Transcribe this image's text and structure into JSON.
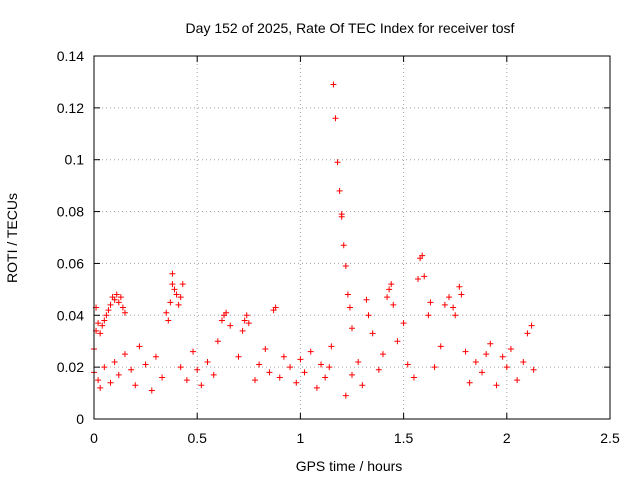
{
  "chart_data": {
    "type": "scatter",
    "title": "Day 152 of 2025, Rate Of TEC Index for receiver tosf",
    "xlabel": "GPS time / hours",
    "ylabel": "ROTI / TECUs",
    "xlim": [
      0,
      2.5
    ],
    "ylim": [
      0,
      0.14
    ],
    "x_ticks": [
      0,
      0.5,
      1,
      1.5,
      2,
      2.5
    ],
    "x_tick_labels": [
      "0",
      "0.5",
      "1",
      "1.5",
      "2",
      "2.5"
    ],
    "y_ticks": [
      0,
      0.02,
      0.04,
      0.06,
      0.08,
      0.1,
      0.12,
      0.14
    ],
    "y_tick_labels": [
      "0",
      "0.02",
      "0.04",
      "0.06",
      "0.08",
      "0.1",
      "0.12",
      "0.14"
    ],
    "grid": true,
    "marker": "plus",
    "series": [
      {
        "name": "ROTI",
        "color": "#ff0000",
        "points": [
          [
            0.0,
            0.018
          ],
          [
            0.0,
            0.027
          ],
          [
            0.01,
            0.043
          ],
          [
            0.01,
            0.034
          ],
          [
            0.02,
            0.037
          ],
          [
            0.02,
            0.015
          ],
          [
            0.03,
            0.033
          ],
          [
            0.04,
            0.036
          ],
          [
            0.05,
            0.038
          ],
          [
            0.06,
            0.04
          ],
          [
            0.07,
            0.042
          ],
          [
            0.08,
            0.044
          ],
          [
            0.09,
            0.047
          ],
          [
            0.1,
            0.046
          ],
          [
            0.11,
            0.048
          ],
          [
            0.12,
            0.045
          ],
          [
            0.13,
            0.047
          ],
          [
            0.14,
            0.043
          ],
          [
            0.15,
            0.041
          ],
          [
            0.03,
            0.012
          ],
          [
            0.05,
            0.02
          ],
          [
            0.08,
            0.014
          ],
          [
            0.1,
            0.022
          ],
          [
            0.12,
            0.017
          ],
          [
            0.15,
            0.025
          ],
          [
            0.18,
            0.019
          ],
          [
            0.2,
            0.013
          ],
          [
            0.22,
            0.028
          ],
          [
            0.25,
            0.021
          ],
          [
            0.28,
            0.011
          ],
          [
            0.3,
            0.024
          ],
          [
            0.33,
            0.016
          ],
          [
            0.35,
            0.041
          ],
          [
            0.36,
            0.038
          ],
          [
            0.37,
            0.045
          ],
          [
            0.38,
            0.052
          ],
          [
            0.38,
            0.056
          ],
          [
            0.39,
            0.05
          ],
          [
            0.4,
            0.048
          ],
          [
            0.41,
            0.044
          ],
          [
            0.42,
            0.047
          ],
          [
            0.43,
            0.052
          ],
          [
            0.42,
            0.02
          ],
          [
            0.45,
            0.015
          ],
          [
            0.48,
            0.026
          ],
          [
            0.5,
            0.019
          ],
          [
            0.52,
            0.013
          ],
          [
            0.55,
            0.022
          ],
          [
            0.58,
            0.017
          ],
          [
            0.6,
            0.03
          ],
          [
            0.62,
            0.038
          ],
          [
            0.63,
            0.04
          ],
          [
            0.64,
            0.041
          ],
          [
            0.66,
            0.036
          ],
          [
            0.7,
            0.024
          ],
          [
            0.72,
            0.034
          ],
          [
            0.73,
            0.038
          ],
          [
            0.74,
            0.04
          ],
          [
            0.75,
            0.037
          ],
          [
            0.78,
            0.015
          ],
          [
            0.8,
            0.021
          ],
          [
            0.83,
            0.027
          ],
          [
            0.85,
            0.018
          ],
          [
            0.87,
            0.042
          ],
          [
            0.88,
            0.043
          ],
          [
            0.9,
            0.016
          ],
          [
            0.92,
            0.024
          ],
          [
            0.95,
            0.02
          ],
          [
            0.98,
            0.014
          ],
          [
            1.0,
            0.023
          ],
          [
            1.02,
            0.018
          ],
          [
            1.05,
            0.026
          ],
          [
            1.08,
            0.012
          ],
          [
            1.1,
            0.021
          ],
          [
            1.12,
            0.016
          ],
          [
            1.14,
            0.02
          ],
          [
            1.15,
            0.028
          ],
          [
            1.16,
            0.129
          ],
          [
            1.17,
            0.116
          ],
          [
            1.18,
            0.099
          ],
          [
            1.19,
            0.088
          ],
          [
            1.2,
            0.079
          ],
          [
            1.2,
            0.078
          ],
          [
            1.21,
            0.067
          ],
          [
            1.22,
            0.059
          ],
          [
            1.23,
            0.048
          ],
          [
            1.24,
            0.043
          ],
          [
            1.25,
            0.035
          ],
          [
            1.22,
            0.009
          ],
          [
            1.25,
            0.017
          ],
          [
            1.28,
            0.022
          ],
          [
            1.3,
            0.013
          ],
          [
            1.32,
            0.046
          ],
          [
            1.33,
            0.04
          ],
          [
            1.35,
            0.033
          ],
          [
            1.38,
            0.019
          ],
          [
            1.4,
            0.025
          ],
          [
            1.42,
            0.047
          ],
          [
            1.43,
            0.05
          ],
          [
            1.44,
            0.052
          ],
          [
            1.45,
            0.044
          ],
          [
            1.47,
            0.03
          ],
          [
            1.5,
            0.037
          ],
          [
            1.52,
            0.021
          ],
          [
            1.55,
            0.016
          ],
          [
            1.57,
            0.054
          ],
          [
            1.58,
            0.062
          ],
          [
            1.59,
            0.063
          ],
          [
            1.6,
            0.055
          ],
          [
            1.62,
            0.04
          ],
          [
            1.63,
            0.045
          ],
          [
            1.65,
            0.02
          ],
          [
            1.68,
            0.028
          ],
          [
            1.7,
            0.044
          ],
          [
            1.72,
            0.047
          ],
          [
            1.74,
            0.043
          ],
          [
            1.75,
            0.04
          ],
          [
            1.77,
            0.051
          ],
          [
            1.78,
            0.048
          ],
          [
            1.8,
            0.026
          ],
          [
            1.82,
            0.014
          ],
          [
            1.85,
            0.022
          ],
          [
            1.88,
            0.018
          ],
          [
            1.9,
            0.025
          ],
          [
            1.92,
            0.029
          ],
          [
            1.95,
            0.013
          ],
          [
            1.98,
            0.024
          ],
          [
            2.0,
            0.02
          ],
          [
            2.02,
            0.027
          ],
          [
            2.05,
            0.015
          ],
          [
            2.08,
            0.022
          ],
          [
            2.1,
            0.033
          ],
          [
            2.12,
            0.036
          ],
          [
            2.13,
            0.019
          ]
        ]
      }
    ]
  }
}
